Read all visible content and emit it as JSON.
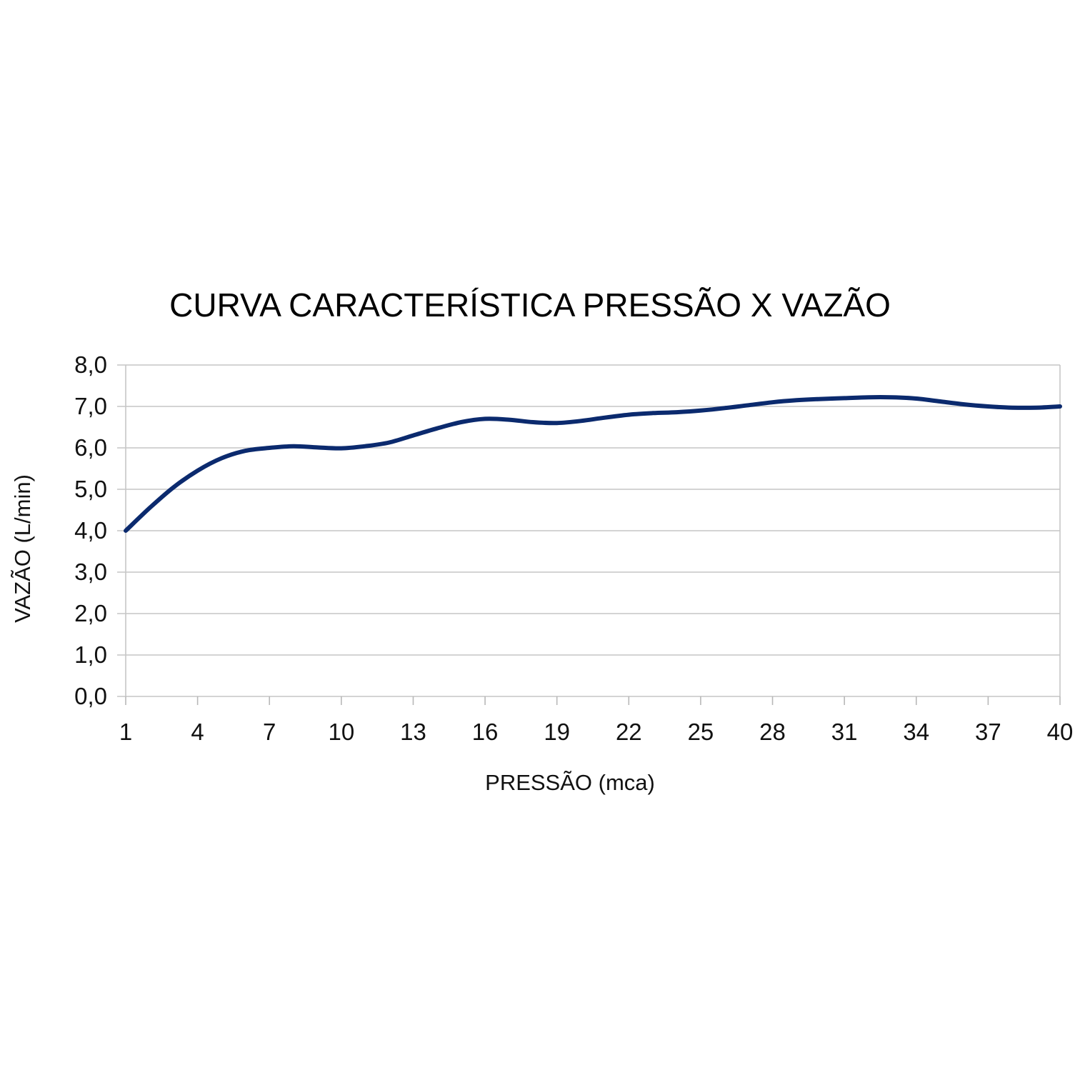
{
  "chart_data": {
    "type": "line",
    "title": "CURVA CARACTERÍSTICA PRESSÃO X VAZÃO",
    "xlabel": "PRESSÃO (mca)",
    "ylabel": "VAZÃO (L/min)",
    "x": [
      1,
      2,
      3,
      4,
      5,
      6,
      7,
      8,
      9,
      10,
      11,
      12,
      13,
      14,
      15,
      16,
      17,
      18,
      19,
      20,
      21,
      22,
      23,
      24,
      25,
      26,
      27,
      28,
      29,
      30,
      31,
      32,
      33,
      34,
      35,
      36,
      37,
      38,
      39,
      40
    ],
    "series": [
      {
        "values": [
          4.0,
          4.55,
          5.05,
          5.45,
          5.75,
          5.93,
          6.0,
          6.04,
          6.01,
          5.99,
          6.04,
          6.13,
          6.3,
          6.47,
          6.62,
          6.7,
          6.68,
          6.62,
          6.6,
          6.65,
          6.73,
          6.8,
          6.84,
          6.86,
          6.9,
          6.96,
          7.03,
          7.1,
          7.15,
          7.18,
          7.2,
          7.22,
          7.22,
          7.19,
          7.12,
          7.05,
          7.0,
          6.97,
          6.97,
          7.0
        ],
        "color": "#0b2a6e"
      }
    ],
    "x_ticks": [
      "1",
      "4",
      "7",
      "10",
      "13",
      "16",
      "19",
      "22",
      "25",
      "28",
      "31",
      "34",
      "37",
      "40"
    ],
    "y_ticks": [
      "0,0",
      "1,0",
      "2,0",
      "3,0",
      "4,0",
      "5,0",
      "6,0",
      "7,0",
      "8,0"
    ],
    "xlim": [
      1,
      40
    ],
    "ylim": [
      0,
      8
    ],
    "grid": true,
    "legend": "none"
  }
}
